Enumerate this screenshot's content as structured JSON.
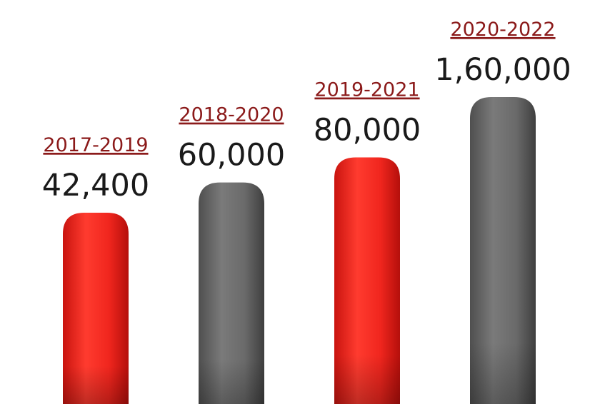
{
  "chart_data": {
    "type": "bar",
    "categories": [
      "2017-2019",
      "2018-2020",
      "2019-2021",
      "2020-2022"
    ],
    "values": [
      42400,
      60000,
      80000,
      160000
    ],
    "value_labels": [
      "42,400",
      "60,000",
      "80,000",
      "1,60,000"
    ],
    "bar_colors": [
      "#ee2a24",
      "#6f6f6f",
      "#ee2a24",
      "#6f6f6f"
    ],
    "label_color": "#8b1a1a",
    "grid": false,
    "axes_visible": false,
    "legend": "none"
  }
}
